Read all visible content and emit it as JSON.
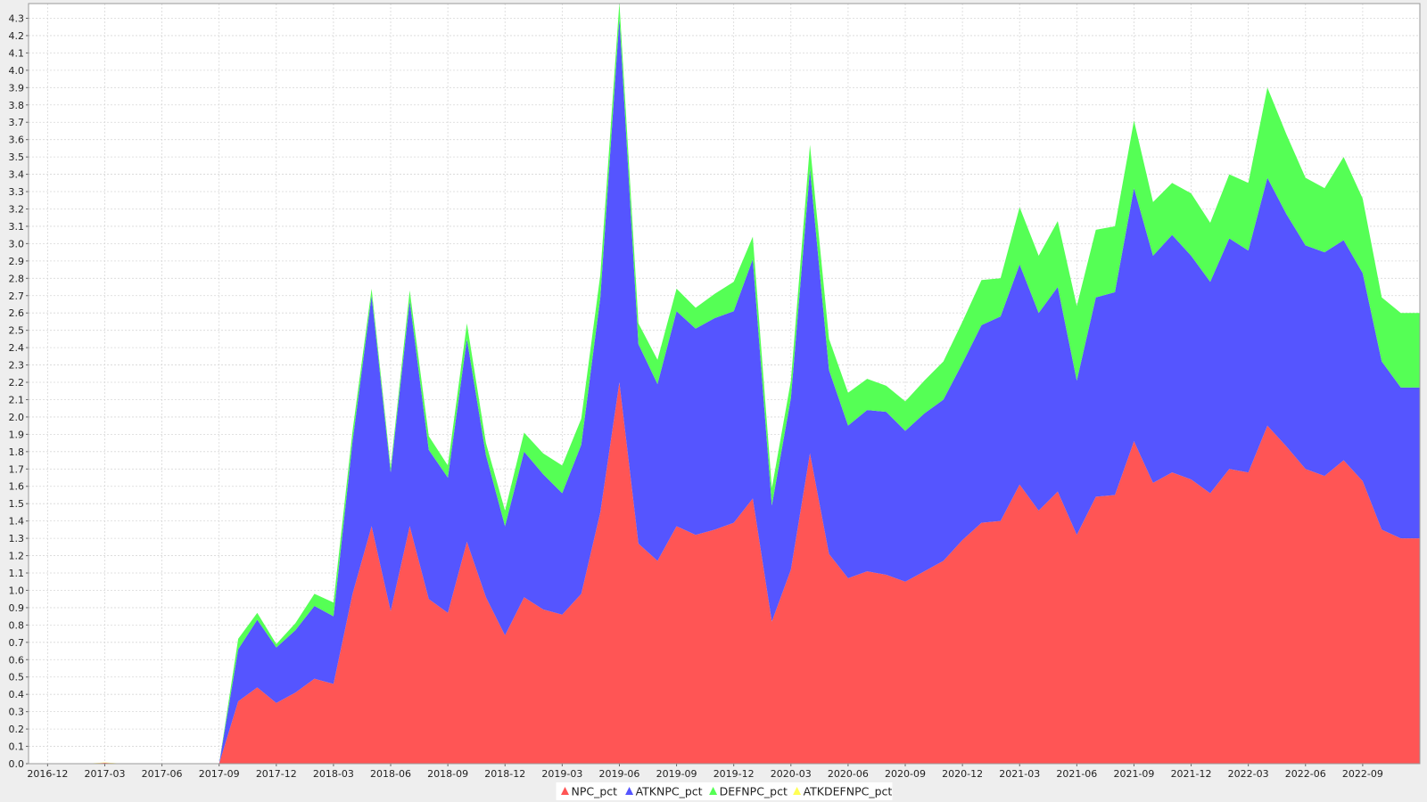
{
  "chart_data": {
    "type": "area",
    "stacked": true,
    "title": "",
    "xlabel": "",
    "ylabel": "",
    "ylim": [
      0,
      4.3
    ],
    "grid": true,
    "legend_position": "bottom-center",
    "x_tick_labels": [
      "2016-12",
      "2017-03",
      "2017-06",
      "2017-09",
      "2017-12",
      "2018-03",
      "2018-06",
      "2018-09",
      "2018-12",
      "2019-03",
      "2019-06",
      "2019-09",
      "2019-12",
      "2020-03",
      "2020-06",
      "2020-09",
      "2020-12",
      "2021-03",
      "2021-06",
      "2021-09",
      "2021-12",
      "2022-03",
      "2022-06",
      "2022-09"
    ],
    "y_ticks": [
      0.0,
      0.1,
      0.2,
      0.3,
      0.4,
      0.5,
      0.6,
      0.7,
      0.8,
      0.9,
      1.0,
      1.1,
      1.2,
      1.3,
      1.4,
      1.5,
      1.6,
      1.7,
      1.8,
      1.9,
      2.0,
      2.1,
      2.2,
      2.3,
      2.4,
      2.5,
      2.6,
      2.7,
      2.8,
      2.9,
      3.0,
      3.1,
      3.2,
      3.3,
      3.4,
      3.5,
      3.6,
      3.7,
      3.8,
      3.9,
      4.0,
      4.1,
      4.2,
      4.3
    ],
    "x": [
      "2016-11",
      "2016-12",
      "2017-01",
      "2017-02",
      "2017-03",
      "2017-04",
      "2017-05",
      "2017-06",
      "2017-07",
      "2017-08",
      "2017-09",
      "2017-10",
      "2017-11",
      "2017-12",
      "2018-01",
      "2018-02",
      "2018-03",
      "2018-04",
      "2018-05",
      "2018-06",
      "2018-07",
      "2018-08",
      "2018-09",
      "2018-10",
      "2018-11",
      "2018-12",
      "2019-01",
      "2019-02",
      "2019-03",
      "2019-04",
      "2019-05",
      "2019-06",
      "2019-07",
      "2019-08",
      "2019-09",
      "2019-10",
      "2019-11",
      "2019-12",
      "2020-01",
      "2020-02",
      "2020-03",
      "2020-04",
      "2020-05",
      "2020-06",
      "2020-07",
      "2020-08",
      "2020-09",
      "2020-10",
      "2020-11",
      "2020-12",
      "2021-01",
      "2021-02",
      "2021-03",
      "2021-04",
      "2021-05",
      "2021-06",
      "2021-07",
      "2021-08",
      "2021-09",
      "2021-10",
      "2021-11",
      "2021-12",
      "2022-01",
      "2022-02",
      "2022-03",
      "2022-04",
      "2022-05",
      "2022-06",
      "2022-07",
      "2022-08",
      "2022-09",
      "2022-10",
      "2022-11",
      "2022-12"
    ],
    "series": [
      {
        "name": "NPC_pct",
        "color": "#ff5555",
        "values": [
          0,
          0,
          0,
          0,
          0.005,
          0,
          0,
          0,
          0,
          0,
          0,
          0.36,
          0.44,
          0.35,
          0.41,
          0.49,
          0.46,
          0.98,
          1.37,
          0.88,
          1.37,
          0.95,
          0.87,
          1.28,
          0.96,
          0.74,
          0.96,
          0.89,
          0.86,
          0.98,
          1.45,
          2.2,
          1.27,
          1.17,
          1.37,
          1.32,
          1.35,
          1.39,
          1.53,
          0.82,
          1.12,
          1.79,
          1.21,
          1.07,
          1.11,
          1.09,
          1.05,
          1.11,
          1.17,
          1.29,
          1.39,
          1.4,
          1.61,
          1.46,
          1.57,
          1.32,
          1.54,
          1.55,
          1.86,
          1.62,
          1.68,
          1.64,
          1.56,
          1.7,
          1.68,
          1.95,
          1.83,
          1.7,
          1.66,
          1.75,
          1.63,
          1.35,
          1.3,
          1.3
        ]
      },
      {
        "name": "ATKNPC_pct",
        "color": "#5555ff",
        "values": [
          0,
          0,
          0,
          0,
          0,
          0,
          0,
          0,
          0,
          0,
          0,
          0.3,
          0.39,
          0.32,
          0.36,
          0.42,
          0.39,
          0.88,
          1.33,
          0.8,
          1.3,
          0.86,
          0.78,
          1.17,
          0.82,
          0.63,
          0.84,
          0.78,
          0.7,
          0.86,
          1.24,
          2.1,
          1.15,
          1.02,
          1.24,
          1.19,
          1.22,
          1.22,
          1.38,
          0.67,
          0.99,
          1.64,
          1.06,
          0.88,
          0.93,
          0.94,
          0.87,
          0.91,
          0.93,
          1.02,
          1.14,
          1.18,
          1.27,
          1.14,
          1.18,
          0.89,
          1.15,
          1.17,
          1.46,
          1.31,
          1.37,
          1.29,
          1.22,
          1.33,
          1.28,
          1.43,
          1.34,
          1.29,
          1.29,
          1.27,
          1.2,
          0.97,
          0.87,
          0.87
        ]
      },
      {
        "name": "DEFNPC_pct",
        "color": "#55ff55",
        "values": [
          0,
          0,
          0,
          0,
          0,
          0,
          0,
          0,
          0,
          0,
          0,
          0.06,
          0.04,
          0.02,
          0.04,
          0.07,
          0.08,
          0.06,
          0.04,
          0.03,
          0.06,
          0.08,
          0.07,
          0.09,
          0.07,
          0.09,
          0.11,
          0.12,
          0.16,
          0.15,
          0.13,
          0.09,
          0.12,
          0.14,
          0.13,
          0.12,
          0.14,
          0.17,
          0.13,
          0.1,
          0.1,
          0.14,
          0.18,
          0.19,
          0.18,
          0.15,
          0.17,
          0.19,
          0.22,
          0.24,
          0.26,
          0.22,
          0.33,
          0.33,
          0.38,
          0.43,
          0.39,
          0.38,
          0.39,
          0.31,
          0.3,
          0.36,
          0.34,
          0.37,
          0.39,
          0.52,
          0.46,
          0.39,
          0.37,
          0.48,
          0.43,
          0.37,
          0.43,
          0.43
        ]
      },
      {
        "name": "ATKDEFNPC_pct",
        "color": "#ffff55",
        "values": [
          0,
          0,
          0,
          0,
          0.002,
          0,
          0.001,
          0.002,
          0.001,
          0,
          0,
          0,
          0,
          0,
          0,
          0,
          0,
          0,
          0,
          0,
          0,
          0,
          0,
          0,
          0,
          0,
          0,
          0,
          0,
          0,
          0,
          0,
          0,
          0,
          0,
          0,
          0,
          0,
          0,
          0,
          0,
          0,
          0,
          0,
          0,
          0,
          0,
          0,
          0,
          0,
          0,
          0,
          0,
          0,
          0,
          0,
          0,
          0,
          0,
          0,
          0,
          0,
          0,
          0,
          0,
          0,
          0,
          0,
          0,
          0,
          0,
          0,
          0,
          0
        ]
      }
    ]
  }
}
